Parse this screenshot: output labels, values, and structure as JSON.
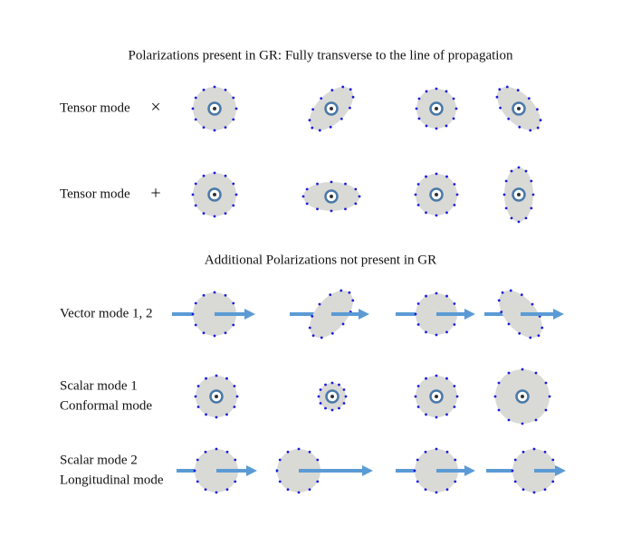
{
  "title": "Polarizations present in GR: Fully transverse to the line of propagation",
  "gr_rows": [
    {
      "label": [
        "Tensor mode"
      ],
      "symbol": "×"
    },
    {
      "label": [
        "Tensor mode"
      ],
      "symbol": "+"
    }
  ],
  "subtitle": "Additional Polarizations not present in GR",
  "extra_rows": [
    {
      "label": [
        "Vector mode 1, 2"
      ]
    },
    {
      "label": [
        "Scalar mode 1",
        "Conformal mode"
      ]
    },
    {
      "label": [
        "Scalar mode 2",
        "Longitudinal mode"
      ]
    }
  ]
}
